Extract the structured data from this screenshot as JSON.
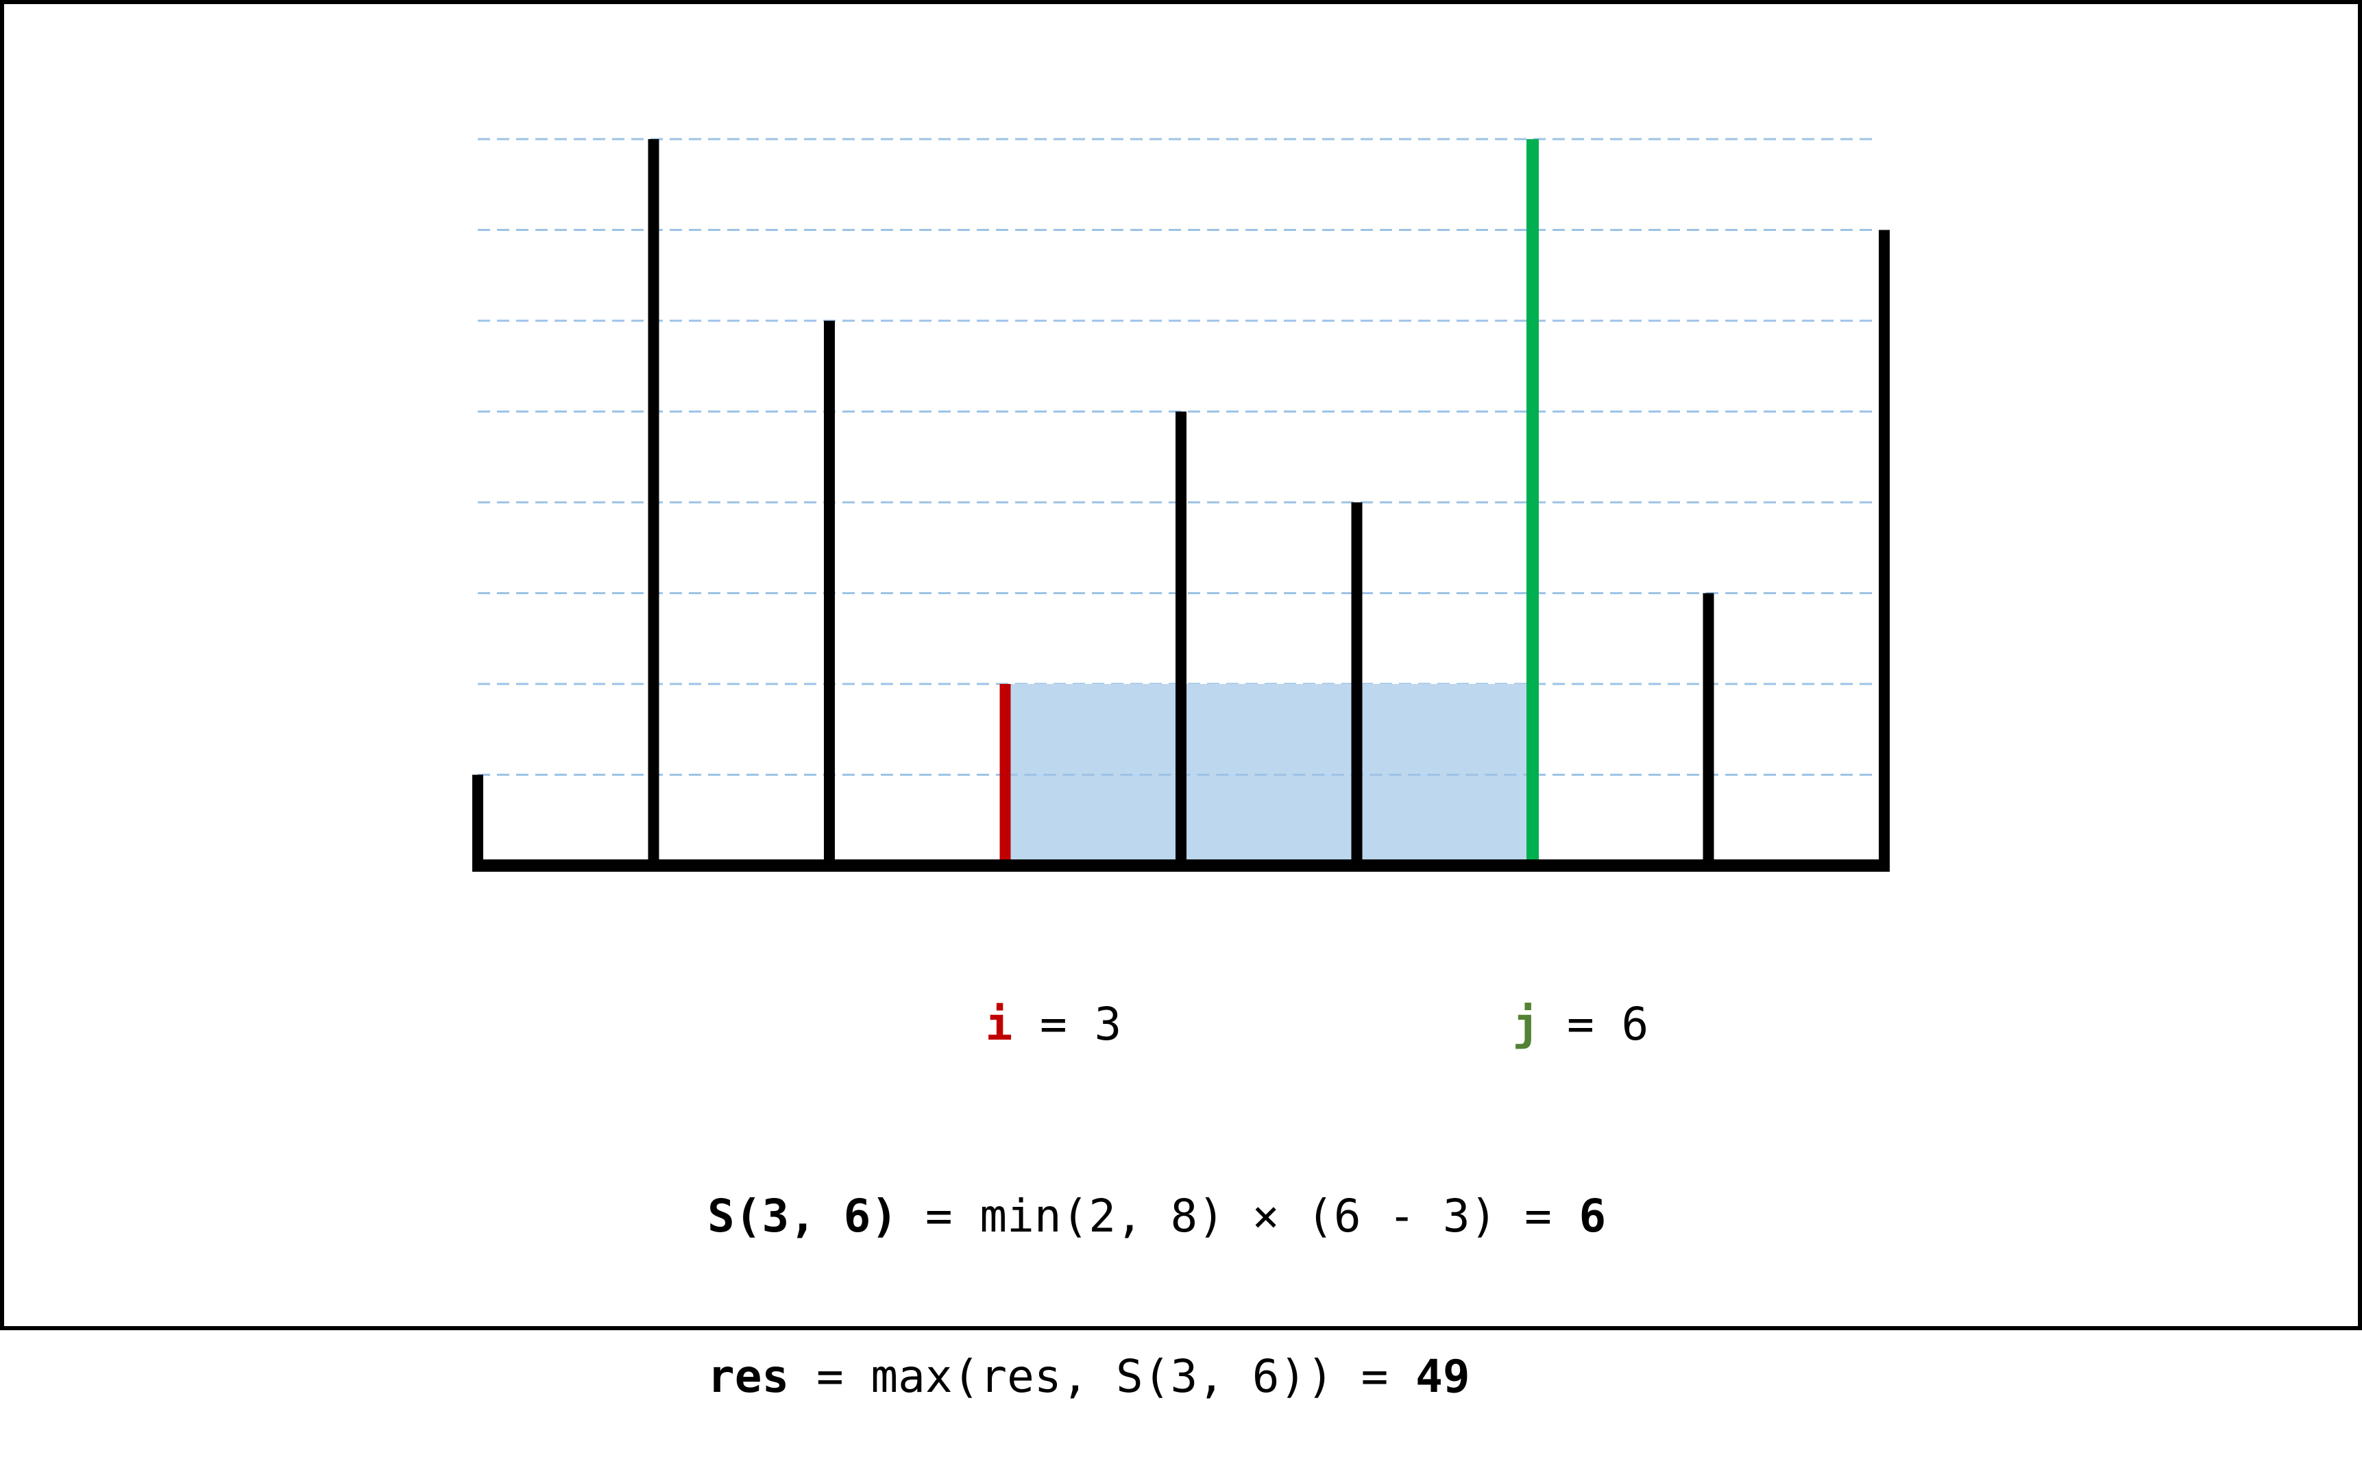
{
  "chart_data": {
    "type": "bar",
    "heights": [
      1,
      8,
      6,
      2,
      5,
      4,
      8,
      3,
      7
    ],
    "ylim": [
      0,
      8
    ],
    "grid": true,
    "highlight": {
      "i": {
        "index": 3,
        "color": "#c00000"
      },
      "j": {
        "index": 6,
        "color": "#00b050"
      },
      "area_color": "#bdd7ee"
    }
  },
  "colors": {
    "bar": "#000000",
    "grid": "#9dc3e6",
    "i_label": "#c00000",
    "j_label": "#548235"
  },
  "labels": {
    "i": {
      "var": "i",
      "rest": " = 3"
    },
    "j": {
      "var": "j",
      "rest": " = 6"
    }
  },
  "formula": {
    "line1": {
      "lhs": "S(3, 6)",
      "mid": " = min(2, 8) × (6 - 3) = ",
      "value": "6"
    },
    "line2": {
      "lhs": "res",
      "mid": " = max(res, S(3, 6)) = ",
      "value": "49"
    }
  }
}
